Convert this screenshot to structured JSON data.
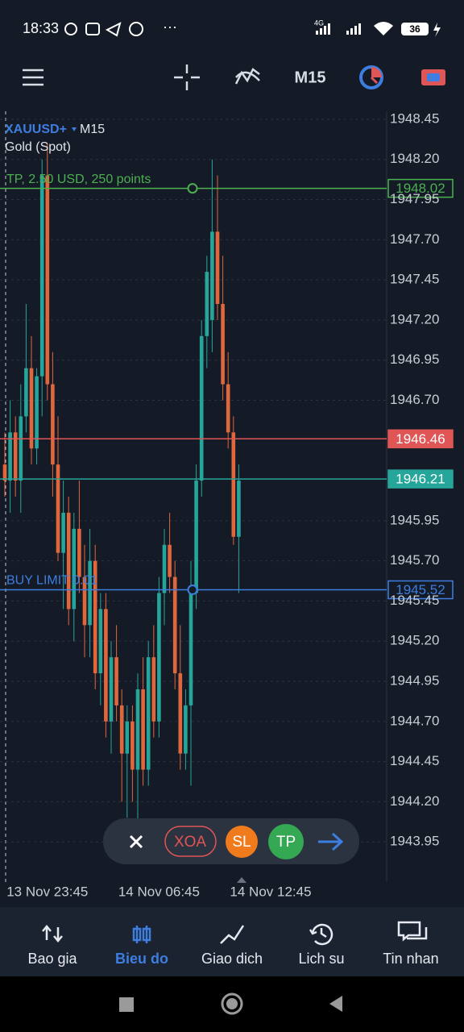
{
  "status_bar": {
    "time": "18:33",
    "network": "4G",
    "battery": 36
  },
  "toolbar": {
    "timeframe": "M15"
  },
  "chart_data": {
    "type": "candlestick",
    "symbol": "XAUUSD+",
    "timeframe": "M15",
    "description": "Gold (Spot)",
    "categories": [
      null,
      null,
      null,
      null,
      null,
      null,
      null,
      null,
      "13 Nov 23:45",
      null,
      null,
      null,
      null,
      null,
      null,
      null,
      null,
      null,
      null,
      null,
      null,
      null,
      null,
      null,
      null,
      null,
      null,
      null,
      null,
      "14 Nov 06:45",
      null,
      null,
      null,
      null,
      null,
      null,
      null,
      null,
      null,
      null,
      null,
      null,
      null,
      null,
      null,
      null,
      null,
      null,
      null,
      null,
      "14 Nov 12:45"
    ],
    "open": [
      1946.3,
      1946.2,
      1946.5,
      1946.2,
      1946.6,
      1946.9,
      1946.4,
      1946.85,
      1948.1,
      1946.8,
      1946.3,
      1945.75,
      1946.0,
      1945.4,
      1945.9,
      1945.6,
      1945.3,
      1945.7,
      1945.0,
      1945.4,
      1944.7,
      1945.1,
      1944.8,
      1944.5,
      1944.7,
      1944.4,
      1944.9,
      1944.4,
      1945.1,
      1944.7,
      1945.5,
      1945.8,
      1945.6,
      1945.0,
      1944.5,
      1944.8,
      1945.5,
      1946.2,
      1947.1,
      1947.2,
      1947.75,
      1947.3,
      1946.8,
      1946.5,
      1945.85,
      null,
      null,
      null,
      null,
      null,
      null
    ],
    "high": [
      1946.5,
      1946.7,
      1946.6,
      1946.8,
      1947.3,
      1947.1,
      1946.9,
      1948.2,
      1948.3,
      1947.0,
      1946.6,
      1946.2,
      1946.1,
      1946.0,
      1946.2,
      1945.8,
      1945.9,
      1945.8,
      1945.5,
      1945.5,
      1945.2,
      1945.3,
      1944.9,
      1944.8,
      1944.8,
      1945.0,
      1945.1,
      1945.2,
      1945.3,
      1945.6,
      1945.9,
      1946.0,
      1945.7,
      1945.3,
      1944.9,
      1945.7,
      1946.3,
      1947.2,
      1947.6,
      1948.2,
      1948.1,
      1947.6,
      1947.0,
      1946.6,
      1946.3,
      null,
      null,
      null,
      null,
      null,
      null
    ],
    "low": [
      1946.1,
      1946.0,
      1946.1,
      1946.0,
      1946.5,
      1946.3,
      1946.3,
      1946.6,
      1946.7,
      1946.1,
      1945.7,
      1945.4,
      1945.3,
      1945.2,
      1945.5,
      1945.1,
      1945.1,
      1944.9,
      1944.8,
      1944.6,
      1944.5,
      1944.7,
      1944.2,
      1944.1,
      1944.2,
      1944.0,
      1944.3,
      1944.3,
      1944.6,
      1944.6,
      1945.3,
      1945.5,
      1944.9,
      1944.4,
      1944.4,
      1944.3,
      1945.4,
      1946.1,
      1946.9,
      1947.0,
      1947.2,
      1946.7,
      1946.4,
      1945.8,
      1945.5,
      null,
      null,
      null,
      null,
      null,
      null
    ],
    "close": [
      1946.2,
      1946.5,
      1946.2,
      1946.6,
      1946.9,
      1946.4,
      1946.85,
      1948.1,
      1946.8,
      1946.3,
      1945.75,
      1946.0,
      1945.4,
      1945.9,
      1945.6,
      1945.3,
      1945.7,
      1945.0,
      1945.4,
      1944.7,
      1945.1,
      1944.8,
      1944.5,
      1944.7,
      1944.4,
      1944.9,
      1944.4,
      1945.1,
      1944.7,
      1945.5,
      1945.8,
      1945.6,
      1945.0,
      1944.5,
      1944.8,
      1945.5,
      1946.2,
      1947.1,
      1947.5,
      1947.75,
      1947.3,
      1946.8,
      1946.5,
      1945.85,
      1946.2,
      null,
      null,
      null,
      null,
      null,
      null
    ],
    "up_color": "#26a69a",
    "down_color": "#e0673c",
    "ylim": [
      1943.7,
      1948.5
    ],
    "yticks": [
      1948.45,
      {
        "value": 1948.2,
        "label": "1948.20"
      },
      1947.95,
      {
        "value": 1947.7,
        "label": "1947.70"
      },
      1947.45,
      {
        "value": 1947.2,
        "label": "1947.20"
      },
      1946.95,
      {
        "value": 1946.7,
        "label": "1946.70"
      },
      1945.95,
      {
        "value": 1945.7,
        "label": "1945.70"
      },
      1945.45,
      {
        "value": 1945.2,
        "label": "1945.20"
      },
      1944.95,
      {
        "value": 1944.7,
        "label": "1944.70"
      },
      1944.45,
      {
        "value": 1944.2,
        "label": "1944.20"
      },
      1943.95
    ],
    "grid": true,
    "hlines": [
      {
        "label": "TP, 2.50 USD, 250 points",
        "value": 1948.02,
        "color": "#4caf50",
        "style": "outline"
      },
      {
        "value": 1946.46,
        "color": "#e05555",
        "style": "filled"
      },
      {
        "value": 1946.21,
        "color": "#26a69a",
        "style": "filled"
      },
      {
        "label": "BUY LIMIT 0.01",
        "value": 1945.52,
        "color": "#3d7ee0",
        "style": "outline"
      }
    ]
  },
  "trade_bar": {
    "buttons": [
      "XOA",
      "SL",
      "TP"
    ]
  },
  "nav": {
    "items": [
      "Bao gia",
      "Bieu do",
      "Giao dich",
      "Lich su",
      "Tin nhan"
    ],
    "active": 1
  }
}
